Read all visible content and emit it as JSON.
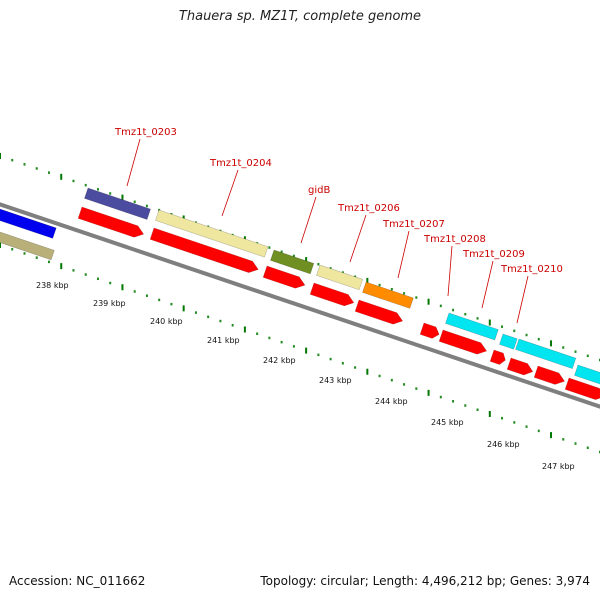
{
  "title": "Thauera sp. MZ1T, complete genome",
  "footer": {
    "accession": "Accession: NC_011662",
    "summary": "Topology: circular; Length: 4,496,212 bp; Genes: 3,974"
  },
  "colors": {
    "backbone": "#7f7f7f",
    "cds": "#ff0000",
    "tick_minor": "#228b22",
    "tick_major": "#007700",
    "gene_label": "#cc0000",
    "dark_blue": "#4b4ba0",
    "pale_yellow": "#efe6a0",
    "olive_green": "#6f8f22",
    "orange": "#ff8c00",
    "cyan": "#00e5f0",
    "khaki": "#b8b078",
    "blue": "#0000ee"
  },
  "scale_labels": [
    "238 kbp",
    "239 kbp",
    "240 kbp",
    "241 kbp",
    "242 kbp",
    "243 kbp",
    "244 kbp",
    "245 kbp",
    "246 kbp",
    "247 kbp"
  ],
  "gene_labels": [
    "Tmz1t_0203",
    "Tmz1t_0204",
    "gidB",
    "Tmz1t_0206",
    "Tmz1t_0207",
    "Tmz1t_0208",
    "Tmz1t_0209",
    "Tmz1t_0210"
  ]
}
